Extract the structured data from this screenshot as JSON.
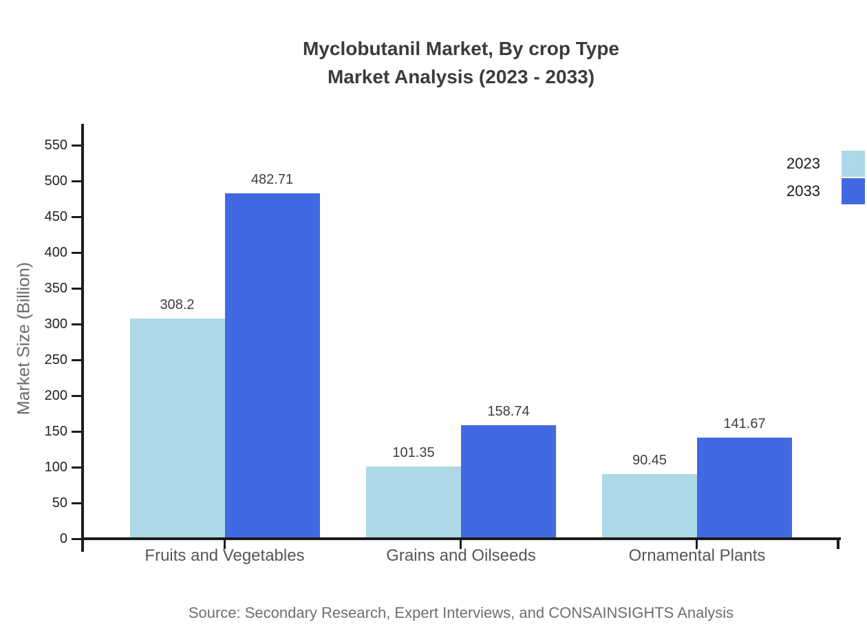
{
  "title": {
    "line1": "Myclobutanil Market, By crop Type",
    "line2": "Market Analysis (2023 - 2033)"
  },
  "source": "Source: Secondary Research, Expert Interviews, and CONSAINSIGHTS Analysis",
  "chart_data": {
    "type": "bar",
    "title": "Myclobutanil Market, By crop Type — Market Analysis (2023 - 2033)",
    "categories": [
      "Fruits and Vegetables",
      "Grains and Oilseeds",
      "Ornamental Plants"
    ],
    "series": [
      {
        "name": "2023",
        "color": "#add8e6",
        "values": [
          308.2,
          101.35,
          90.45
        ]
      },
      {
        "name": "2033",
        "color": "#4169e1",
        "values": [
          482.71,
          158.74,
          141.67
        ]
      }
    ],
    "xlabel": "",
    "ylabel": "Market Size (Billion)",
    "ylim": [
      0,
      580
    ],
    "yticks": [
      0,
      50,
      100,
      150,
      200,
      250,
      300,
      350,
      400,
      450,
      500,
      550
    ],
    "grid": false,
    "legend_position": "top-right",
    "bar_value_labels": true
  },
  "colors": {
    "series_2023": "#add8e6",
    "series_2033": "#4169e1",
    "axis_line": "#1c1c1c",
    "title_text": "#3b3b3b",
    "tick_text": "#222222",
    "category_text": "#565656",
    "axis_label_text": "#6b6b6b",
    "value_label_text": "#3d3d3d",
    "legend_text": "#1a1a1a",
    "source_text": "#6e6e6e",
    "background": "#ffffff"
  }
}
